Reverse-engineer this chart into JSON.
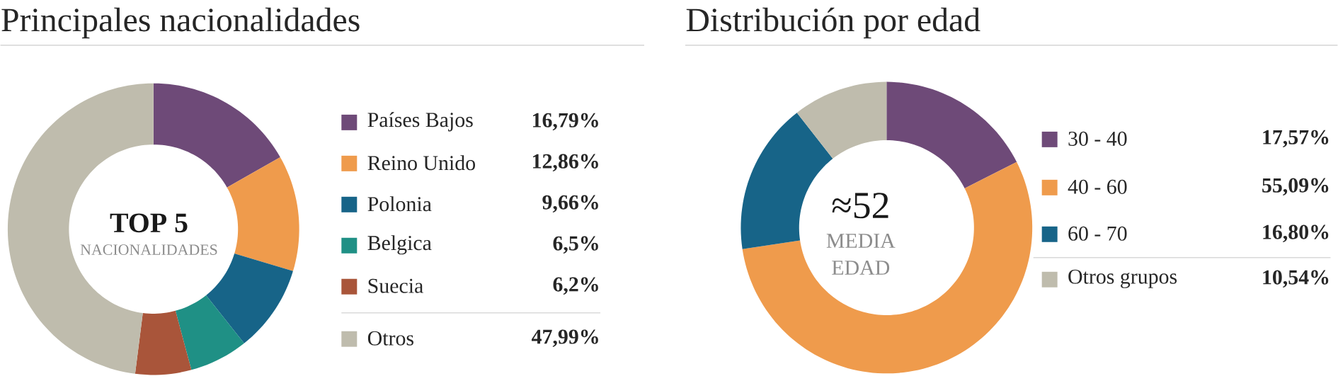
{
  "chart_data": [
    {
      "type": "donut",
      "title": "Principales nacionalidades",
      "categories": [
        "Países Bajos",
        "Reino Unido",
        "Polonia",
        "Belgica",
        "Suecia",
        "Otros"
      ],
      "values": [
        16.79,
        12.86,
        9.66,
        6.5,
        6.2,
        47.99
      ],
      "value_labels": [
        "16,79%",
        "12,86%",
        "9,66%",
        "6,5%",
        "6,2%",
        "47,99%"
      ],
      "colors": [
        "#6e4a78",
        "#ef9b4c",
        "#176488",
        "#1f9085",
        "#a9553a",
        "#bfbcad"
      ],
      "legend": "right",
      "annotations": [
        "TOP 5",
        "NACIONALIDADES"
      ]
    },
    {
      "type": "donut",
      "title": "Distribución por edad",
      "categories": [
        "30 - 40",
        "40 - 60",
        "60 - 70",
        "Otros grupos"
      ],
      "values": [
        17.57,
        55.09,
        16.8,
        10.54
      ],
      "value_labels": [
        "17,57%",
        "55,09%",
        "16,80%",
        "10,54%"
      ],
      "colors": [
        "#6e4a78",
        "#ef9b4c",
        "#176488",
        "#bfbcad"
      ],
      "legend": "right",
      "annotations": [
        "≈52",
        "MEDIA",
        "EDAD"
      ]
    }
  ]
}
